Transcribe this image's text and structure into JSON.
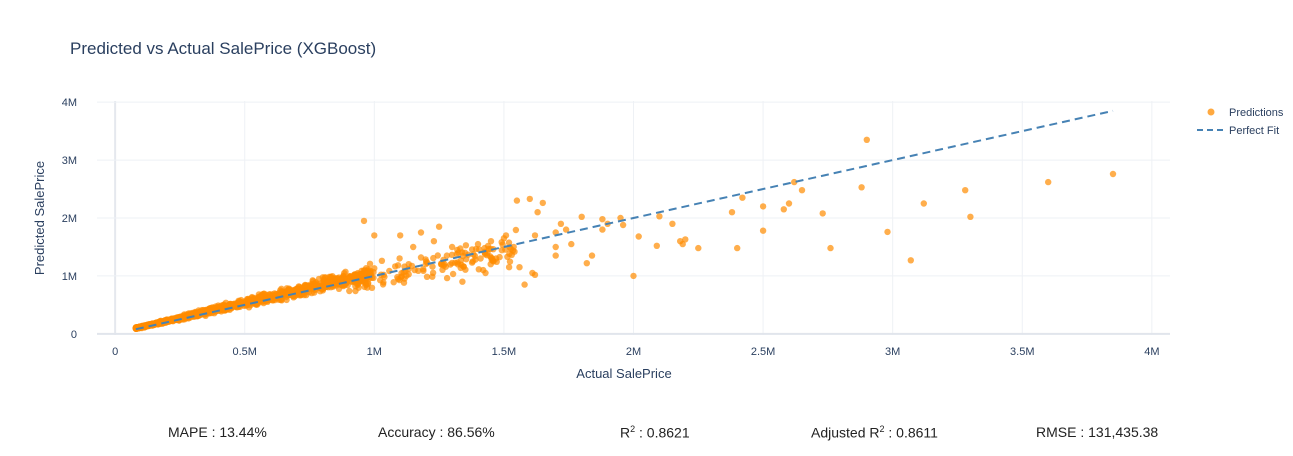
{
  "chart_data": {
    "type": "scatter",
    "title": "Predicted vs Actual SalePrice (XGBoost)",
    "xlabel": "Actual SalePrice",
    "ylabel": "Predicted SalePrice",
    "xlim": [
      -70000,
      4070000
    ],
    "ylim": [
      -20000,
      4020000
    ],
    "x_ticks": [
      0,
      500000,
      1000000,
      1500000,
      2000000,
      2500000,
      3000000,
      3500000,
      4000000
    ],
    "x_tick_labels": [
      "0",
      "0.5M",
      "1M",
      "1.5M",
      "2M",
      "2.5M",
      "3M",
      "3.5M",
      "4M"
    ],
    "y_ticks": [
      0,
      1000000,
      2000000,
      3000000,
      4000000
    ],
    "y_tick_labels": [
      "0",
      "1M",
      "2M",
      "3M",
      "4M"
    ],
    "grid": true,
    "legend_position": "top-right",
    "series": [
      {
        "name": "Predictions",
        "mode": "markers",
        "color": "#ff8c00",
        "x": [
          1550000,
          1600000,
          1650000,
          1800000,
          1950000,
          1630000,
          1740000,
          1500000,
          1700000,
          1720000,
          1880000,
          2000000,
          1580000,
          1620000,
          1300000,
          1350000,
          1400000,
          1450000,
          1230000,
          1280000,
          1320000,
          1380000,
          1420000,
          1470000,
          1520000,
          1250000,
          1180000,
          1100000,
          1150000,
          960000,
          1000000,
          1200000,
          1260000,
          1340000,
          1560000,
          1610000,
          1460000,
          1410000,
          2180000,
          2090000,
          2150000,
          2200000,
          2250000,
          2020000,
          1960000,
          1880000,
          1760000,
          2400000,
          2420000,
          2500000,
          2500000,
          2620000,
          2580000,
          2600000,
          2650000,
          2730000,
          2760000,
          2880000,
          2900000,
          2980000,
          3070000,
          3120000,
          3280000,
          3300000,
          3600000,
          3850000,
          1700000,
          1820000,
          1840000,
          1900000,
          2100000,
          2190000,
          2380000,
          1620000,
          1700000
        ],
        "y": [
          2300000,
          2330000,
          2260000,
          2020000,
          2000000,
          2100000,
          1800000,
          1650000,
          1750000,
          1900000,
          1980000,
          1000000,
          850000,
          1020000,
          1500000,
          1400000,
          1550000,
          1600000,
          1600000,
          1350000,
          1450000,
          1250000,
          1100000,
          1300000,
          1150000,
          1850000,
          1750000,
          1700000,
          1500000,
          1950000,
          1700000,
          1250000,
          1200000,
          900000,
          1150000,
          1050000,
          1250000,
          1300000,
          1600000,
          1520000,
          1900000,
          1630000,
          1480000,
          1680000,
          1880000,
          1800000,
          1550000,
          1480000,
          2350000,
          2200000,
          1780000,
          2620000,
          2150000,
          2250000,
          2480000,
          2080000,
          1480000,
          2530000,
          3350000,
          1760000,
          1270000,
          2250000,
          2480000,
          2020000,
          2620000,
          2760000,
          1350000,
          1220000,
          1350000,
          1900000,
          2030000,
          1550000,
          2100000,
          1700000,
          1500000
        ]
      },
      {
        "name": "Perfect Fit",
        "mode": "lines",
        "dash": "dash",
        "color": "#4682b4",
        "x": [
          80000,
          3850000
        ],
        "y": [
          80000,
          3850000
        ]
      }
    ],
    "dense_cloud": {
      "count": 1150,
      "x_range": [
        80000,
        1000000
      ],
      "slope": 1.03,
      "spread": 0.12
    },
    "secondary_cloud": {
      "count": 140,
      "x_range": [
        900000,
        1550000
      ],
      "slope": 0.95,
      "spread": 0.22
    }
  },
  "metrics": {
    "mape": "MAPE : 13.44%",
    "accuracy": "Accuracy : 86.56%",
    "r2_prefix": "R",
    "r2_suffix": " : 0.8621",
    "adj_r2_prefix": "Adjusted R",
    "adj_r2_suffix": " : 0.8611",
    "rmse": "RMSE : 131,435.38"
  }
}
